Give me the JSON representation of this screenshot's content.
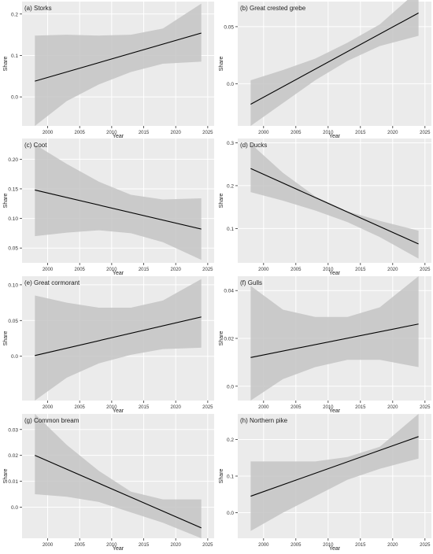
{
  "chart_data": [
    {
      "type": "line",
      "title": "(a) Storks",
      "xlabel": "Year",
      "ylabel": "Share",
      "xlim": [
        1996,
        2026
      ],
      "ylim": [
        -0.07,
        0.23
      ],
      "x_ticks": [
        2000,
        2005,
        2010,
        2015,
        2020,
        2025
      ],
      "y_ticks": [
        0.0,
        0.1,
        0.2
      ],
      "y_tick_labels": [
        "0.0",
        "0.1",
        "0.2"
      ],
      "fit_x": [
        1998,
        2024
      ],
      "fit_y": [
        0.038,
        0.154
      ],
      "band_x": [
        1998,
        2003,
        2008,
        2013,
        2018,
        2024
      ],
      "band_lower": [
        -0.07,
        -0.01,
        0.03,
        0.06,
        0.08,
        0.085
      ],
      "band_upper": [
        0.148,
        0.15,
        0.148,
        0.15,
        0.165,
        0.225
      ]
    },
    {
      "type": "line",
      "title": "(b) Great crested grebe",
      "xlabel": "Year",
      "ylabel": "Share",
      "xlim": [
        1996,
        2026
      ],
      "ylim": [
        -0.037,
        0.072
      ],
      "x_ticks": [
        2000,
        2005,
        2010,
        2015,
        2020,
        2025
      ],
      "y_ticks": [
        0.0,
        0.05
      ],
      "y_tick_labels": [
        "0.0",
        "0.05"
      ],
      "fit_x": [
        1998,
        2024
      ],
      "fit_y": [
        -0.018,
        0.062
      ],
      "band_x": [
        1998,
        2003,
        2008,
        2013,
        2018,
        2024
      ],
      "band_lower": [
        -0.037,
        -0.017,
        0.003,
        0.02,
        0.033,
        0.042
      ],
      "band_upper": [
        0.003,
        0.012,
        0.022,
        0.036,
        0.052,
        0.082
      ]
    },
    {
      "type": "line",
      "title": "(c) Coot",
      "xlabel": "Year",
      "ylabel": "Share",
      "xlim": [
        1996,
        2026
      ],
      "ylim": [
        0.025,
        0.235
      ],
      "x_ticks": [
        2000,
        2005,
        2010,
        2015,
        2020,
        2025
      ],
      "y_ticks": [
        0.05,
        0.1,
        0.15,
        0.2
      ],
      "y_tick_labels": [
        "0.05",
        "0.10",
        "0.15",
        "0.20"
      ],
      "fit_x": [
        1998,
        2024
      ],
      "fit_y": [
        0.148,
        0.082
      ],
      "band_x": [
        1998,
        2003,
        2008,
        2013,
        2018,
        2024
      ],
      "band_lower": [
        0.07,
        0.076,
        0.08,
        0.075,
        0.06,
        0.03
      ],
      "band_upper": [
        0.225,
        0.192,
        0.162,
        0.14,
        0.132,
        0.134
      ]
    },
    {
      "type": "line",
      "title": "(d) Ducks",
      "xlabel": "Year",
      "ylabel": "Share",
      "xlim": [
        1996,
        2026
      ],
      "ylim": [
        0.02,
        0.31
      ],
      "x_ticks": [
        2000,
        2005,
        2010,
        2015,
        2020,
        2025
      ],
      "y_ticks": [
        0.1,
        0.2,
        0.3
      ],
      "y_tick_labels": [
        "0.1",
        "0.2",
        "0.3"
      ],
      "fit_x": [
        1998,
        2024
      ],
      "fit_y": [
        0.24,
        0.064
      ],
      "band_x": [
        1998,
        2003,
        2008,
        2013,
        2018,
        2024
      ],
      "band_lower": [
        0.185,
        0.165,
        0.142,
        0.115,
        0.08,
        0.03
      ],
      "band_upper": [
        0.298,
        0.23,
        0.175,
        0.14,
        0.118,
        0.095
      ]
    },
    {
      "type": "line",
      "title": "(e) Great cormorant",
      "xlabel": "Year",
      "ylabel": "Share",
      "xlim": [
        1996,
        2026
      ],
      "ylim": [
        -0.062,
        0.112
      ],
      "x_ticks": [
        2000,
        2005,
        2010,
        2015,
        2020,
        2025
      ],
      "y_ticks": [
        0.0,
        0.05,
        0.1
      ],
      "y_tick_labels": [
        "0.0",
        "0.05",
        "0.10"
      ],
      "fit_x": [
        1998,
        2024
      ],
      "fit_y": [
        0.001,
        0.055
      ],
      "band_x": [
        1998,
        2003,
        2008,
        2013,
        2018,
        2024
      ],
      "band_lower": [
        -0.062,
        -0.03,
        -0.01,
        0.002,
        0.01,
        0.012
      ],
      "band_upper": [
        0.085,
        0.075,
        0.068,
        0.068,
        0.078,
        0.108
      ]
    },
    {
      "type": "line",
      "title": "(f) Gulls",
      "xlabel": "Year",
      "ylabel": "Share",
      "xlim": [
        1996,
        2026
      ],
      "ylim": [
        -0.006,
        0.046
      ],
      "x_ticks": [
        2000,
        2005,
        2010,
        2015,
        2020,
        2025
      ],
      "y_ticks": [
        0.0,
        0.02,
        0.04
      ],
      "y_tick_labels": [
        "0.0",
        "0.02",
        "0.04"
      ],
      "fit_x": [
        1998,
        2024
      ],
      "fit_y": [
        0.012,
        0.026
      ],
      "band_x": [
        1998,
        2003,
        2008,
        2013,
        2018,
        2024
      ],
      "band_lower": [
        -0.006,
        0.003,
        0.008,
        0.011,
        0.011,
        0.008
      ],
      "band_upper": [
        0.042,
        0.032,
        0.029,
        0.029,
        0.033,
        0.046
      ]
    },
    {
      "type": "line",
      "title": "(g) Common bream",
      "xlabel": "Year",
      "ylabel": "Share",
      "xlim": [
        1996,
        2026
      ],
      "ylim": [
        -0.012,
        0.036
      ],
      "x_ticks": [
        2000,
        2005,
        2010,
        2015,
        2020,
        2025
      ],
      "y_ticks": [
        0.0,
        0.01,
        0.02,
        0.03
      ],
      "y_tick_labels": [
        "0.0",
        "0.01",
        "0.02",
        "0.03"
      ],
      "fit_x": [
        1998,
        2024
      ],
      "fit_y": [
        0.02,
        -0.008
      ],
      "band_x": [
        1998,
        2003,
        2008,
        2013,
        2018,
        2024
      ],
      "band_lower": [
        0.005,
        0.004,
        0.002,
        -0.002,
        -0.006,
        -0.012
      ],
      "band_upper": [
        0.036,
        0.024,
        0.014,
        0.006,
        0.003,
        0.003
      ]
    },
    {
      "type": "line",
      "title": "(h) Northern pike",
      "xlabel": "Year",
      "ylabel": "Share",
      "xlim": [
        1996,
        2026
      ],
      "ylim": [
        -0.07,
        0.27
      ],
      "x_ticks": [
        2000,
        2005,
        2010,
        2015,
        2020,
        2025
      ],
      "y_ticks": [
        0.0,
        0.1,
        0.2
      ],
      "y_tick_labels": [
        "0.0",
        "0.1",
        "0.2"
      ],
      "fit_x": [
        1998,
        2024
      ],
      "fit_y": [
        0.045,
        0.208
      ],
      "band_x": [
        1998,
        2003,
        2008,
        2013,
        2018,
        2024
      ],
      "band_lower": [
        -0.05,
        0.0,
        0.045,
        0.09,
        0.12,
        0.148
      ],
      "band_upper": [
        0.14,
        0.14,
        0.14,
        0.152,
        0.18,
        0.27
      ]
    }
  ]
}
